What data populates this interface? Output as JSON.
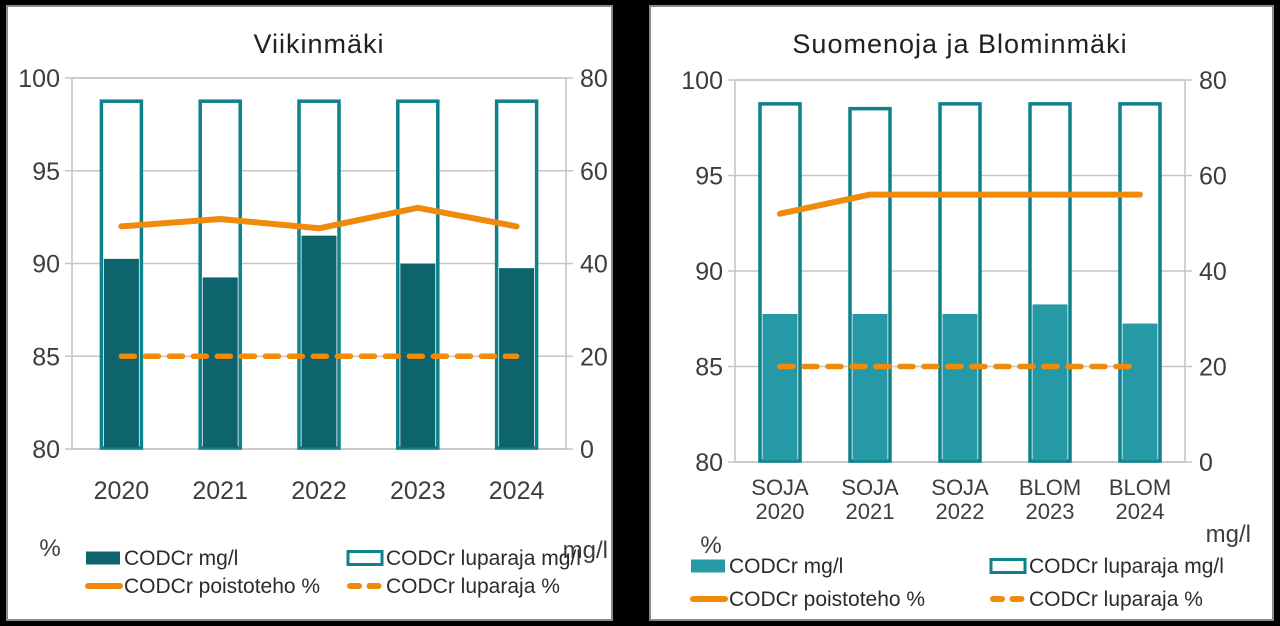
{
  "colors": {
    "bar_fill_viikinmaki": "#0D646C",
    "bar_fill_suomenoja": "#2699A6",
    "bar_outline_teal": "#0E828A",
    "line_orange": "#F08A0A",
    "grid_gray": "#C6C6C6",
    "axis_text": "#3D3D3D",
    "title_text": "#212121"
  },
  "chart_data": [
    {
      "type": "bar",
      "title": "Viikinmäki",
      "categories": [
        "2020",
        "2021",
        "2022",
        "2023",
        "2024"
      ],
      "left_axis": {
        "label": "%",
        "min": 80,
        "max": 100,
        "ticks": [
          100,
          95,
          90,
          85,
          80
        ]
      },
      "right_axis": {
        "label": "mg/l",
        "min": 0,
        "max": 80,
        "ticks": [
          80,
          60,
          40,
          20,
          0
        ]
      },
      "grid": true,
      "legend_position": "bottom",
      "bar_color": "#0D646C",
      "series": [
        {
          "name": "CODCr mg/l",
          "type": "bar",
          "axis": "right",
          "values": [
            41,
            37,
            46,
            40,
            39
          ]
        },
        {
          "name": "CODCr  luparaja mg/l",
          "type": "bar-outline",
          "axis": "right",
          "values": [
            75,
            75,
            75,
            75,
            75
          ]
        },
        {
          "name": "CODCr poistoteho %",
          "type": "line",
          "axis": "left",
          "values": [
            92,
            92.4,
            91.9,
            93,
            92
          ]
        },
        {
          "name": "CODCr luparaja  %",
          "type": "line-dashed",
          "axis": "left",
          "values": [
            85,
            85,
            85,
            85,
            85
          ]
        }
      ]
    },
    {
      "type": "bar",
      "title": "Suomenoja ja Blominmäki",
      "categories": [
        "SOJA\n2020",
        "SOJA\n2021",
        "SOJA\n2022",
        "BLOM\n2023",
        "BLOM\n2024"
      ],
      "left_axis": {
        "label": "%",
        "min": 80,
        "max": 100,
        "ticks": [
          100,
          95,
          90,
          85,
          80
        ]
      },
      "right_axis": {
        "label": "mg/l",
        "min": 0,
        "max": 80,
        "ticks": [
          80,
          60,
          40,
          20,
          0
        ]
      },
      "grid": true,
      "legend_position": "bottom",
      "bar_color": "#2699A6",
      "series": [
        {
          "name": "CODCr mg/l",
          "type": "bar",
          "axis": "right",
          "values": [
            31,
            31,
            31,
            33,
            29
          ]
        },
        {
          "name": "CODCr luparaja  mg/l",
          "type": "bar-outline",
          "axis": "right",
          "values": [
            75,
            74,
            75,
            75,
            75
          ]
        },
        {
          "name": "CODCr poistoteho %",
          "type": "line",
          "axis": "left",
          "values": [
            93,
            94,
            94,
            94,
            94
          ]
        },
        {
          "name": "CODCr luparaja %",
          "type": "line-dashed",
          "axis": "left",
          "values": [
            85,
            85,
            85,
            85,
            85
          ]
        }
      ]
    }
  ]
}
